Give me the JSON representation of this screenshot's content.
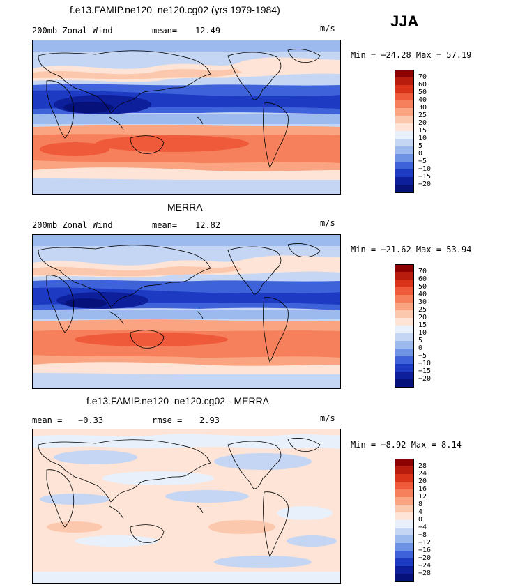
{
  "season": "JJA",
  "panels": [
    {
      "title": "f.e13.FAMIP.ne120_ne120.cg02 (yrs 1979-1984)",
      "left_label": "200mb Zonal Wind",
      "stat_label": "mean=",
      "stat_value": "12.49",
      "stat2_label": "",
      "stat2_value": "",
      "units": "m/s",
      "minmax": "Min = −24.28 Max =  57.19",
      "colorbar": {
        "labels": [
          "70",
          "60",
          "50",
          "40",
          "30",
          "25",
          "20",
          "15",
          "10",
          "5",
          "0",
          "−5",
          "−10",
          "−15",
          "−20"
        ],
        "colors": [
          "#8b0000",
          "#b71c0c",
          "#d9331a",
          "#ee5a3a",
          "#f7805c",
          "#fba482",
          "#fcc8ad",
          "#fde4d6",
          "#e8f0fb",
          "#c4d6f3",
          "#9cbaee",
          "#6f93e4",
          "#3e62d9",
          "#1d3bc2",
          "#0d1f9a",
          "#06127a"
        ]
      }
    },
    {
      "title": "MERRA",
      "left_label": "200mb Zonal Wind",
      "stat_label": "mean=",
      "stat_value": "12.82",
      "stat2_label": "",
      "stat2_value": "",
      "units": "m/s",
      "minmax": "Min = −21.62 Max =  53.94",
      "colorbar": {
        "labels": [
          "70",
          "60",
          "50",
          "40",
          "30",
          "25",
          "20",
          "15",
          "10",
          "5",
          "0",
          "−5",
          "−10",
          "−15",
          "−20"
        ],
        "colors": [
          "#8b0000",
          "#b71c0c",
          "#d9331a",
          "#ee5a3a",
          "#f7805c",
          "#fba482",
          "#fcc8ad",
          "#fde4d6",
          "#e8f0fb",
          "#c4d6f3",
          "#9cbaee",
          "#6f93e4",
          "#3e62d9",
          "#1d3bc2",
          "#0d1f9a",
          "#06127a"
        ]
      }
    },
    {
      "title": "f.e13.FAMIP.ne120_ne120.cg02 - MERRA",
      "left_label": "mean =",
      "stat_label": "",
      "stat_value": "−0.33",
      "stat2_label": "rmse =",
      "stat2_value": "2.93",
      "units": "m/s",
      "minmax": "Min =  −8.92 Max =   8.14",
      "colorbar": {
        "labels": [
          "28",
          "24",
          "20",
          "16",
          "12",
          "8",
          "4",
          "0",
          "−4",
          "−8",
          "−12",
          "−16",
          "−20",
          "−24",
          "−28"
        ],
        "colors": [
          "#8b0000",
          "#b71c0c",
          "#d9331a",
          "#ee5a3a",
          "#f7805c",
          "#fba482",
          "#fcc8ad",
          "#fde4d6",
          "#e8f0fb",
          "#c4d6f3",
          "#9cbaee",
          "#6f93e4",
          "#3e62d9",
          "#1d3bc2",
          "#0d1f9a",
          "#06127a"
        ]
      }
    }
  ]
}
